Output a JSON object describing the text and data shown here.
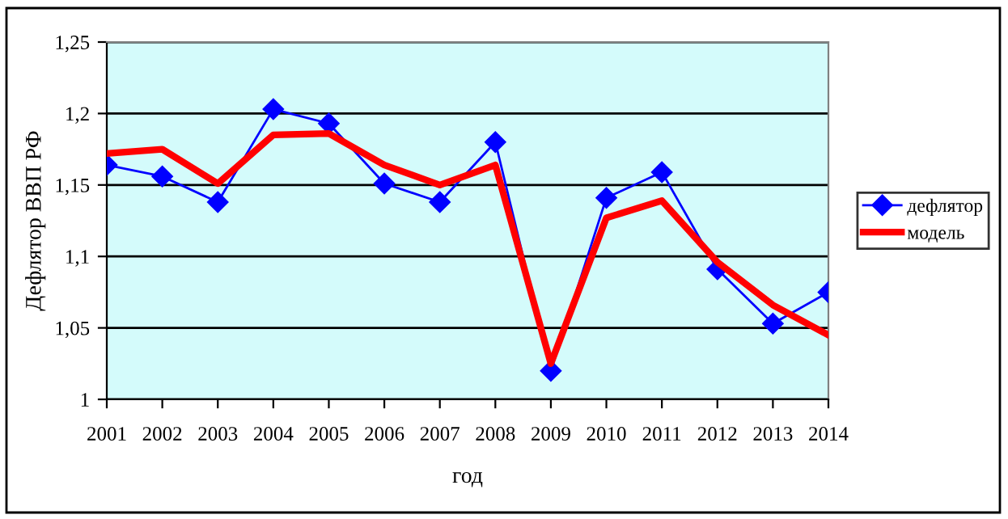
{
  "chart_data": {
    "type": "line",
    "xlabel": "год",
    "ylabel": "Дефлятор ВВП РФ",
    "categories": [
      "2001",
      "2002",
      "2003",
      "2004",
      "2005",
      "2006",
      "2007",
      "2008",
      "2009",
      "2010",
      "2011",
      "2012",
      "2013",
      "2014"
    ],
    "series": [
      {
        "name": "дефлятор",
        "color": "#0000ff",
        "marker": "diamond",
        "values": [
          1.164,
          1.156,
          1.138,
          1.203,
          1.193,
          1.151,
          1.138,
          1.18,
          1.02,
          1.141,
          1.159,
          1.091,
          1.053,
          1.075
        ]
      },
      {
        "name": "модель",
        "color": "#ff0000",
        "marker": "none",
        "values": [
          1.172,
          1.175,
          1.151,
          1.185,
          1.186,
          1.164,
          1.15,
          1.164,
          1.025,
          1.127,
          1.139,
          1.096,
          1.066,
          1.045
        ]
      }
    ],
    "ylim": [
      1,
      1.25
    ],
    "yticks": [
      1,
      {
        "value": 1.05,
        "label": "1,05"
      },
      {
        "value": 1.1,
        "label": "1,1"
      },
      {
        "value": 1.15,
        "label": "1,15"
      },
      {
        "value": 1.2,
        "label": "1,2"
      },
      {
        "value": 1.25,
        "label": "1,25"
      }
    ],
    "grid": "y",
    "legend": "right",
    "line_style": "solid"
  }
}
